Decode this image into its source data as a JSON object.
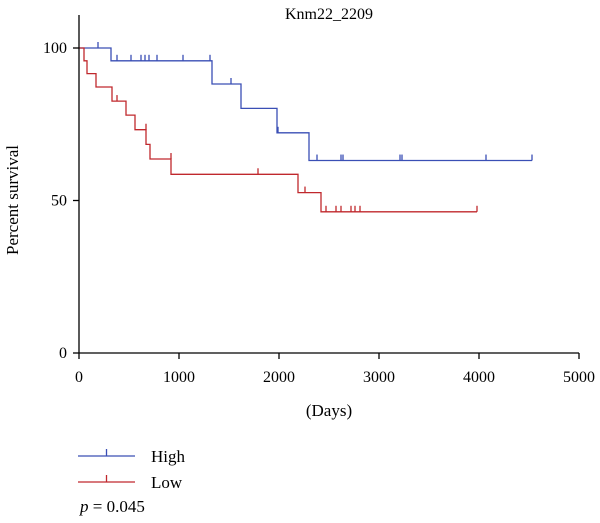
{
  "chart_data": {
    "type": "line",
    "subtype": "kaplan-meier",
    "title": "Knm22_2209",
    "xlabel": "(Days)",
    "ylabel": "Percent survival",
    "xlim": [
      0,
      5000
    ],
    "ylim": [
      0,
      100
    ],
    "xticks": [
      "0",
      "1000",
      "2000",
      "3000",
      "4000",
      "5000"
    ],
    "yticks": [
      "0",
      "50",
      "100"
    ],
    "grid": false,
    "legend_position": "bottom-left",
    "annotation": {
      "prefix": "p",
      "text": " = 0.045"
    },
    "series": [
      {
        "name": "High",
        "color": "#3a4fb5",
        "steps": [
          [
            0,
            100
          ],
          [
            320,
            100
          ],
          [
            320,
            95.8
          ],
          [
            1330,
            95.8
          ],
          [
            1330,
            88.2
          ],
          [
            1620,
            88.2
          ],
          [
            1620,
            80.2
          ],
          [
            1980,
            80.2
          ],
          [
            1980,
            72.2
          ],
          [
            2300,
            72.2
          ],
          [
            2300,
            63.1
          ],
          [
            4530,
            63.1
          ]
        ],
        "censored": [
          [
            190,
            100
          ],
          [
            380,
            95.8
          ],
          [
            520,
            95.8
          ],
          [
            620,
            95.8
          ],
          [
            660,
            95.8
          ],
          [
            700,
            95.8
          ],
          [
            780,
            95.8
          ],
          [
            1040,
            95.8
          ],
          [
            1310,
            95.8
          ],
          [
            1520,
            88.2
          ],
          [
            1990,
            72.2
          ],
          [
            2380,
            63.1
          ],
          [
            2620,
            63.1
          ],
          [
            2640,
            63.1
          ],
          [
            3210,
            63.1
          ],
          [
            3230,
            63.1
          ],
          [
            4070,
            63.1
          ],
          [
            4530,
            63.1
          ]
        ]
      },
      {
        "name": "Low",
        "color": "#c0282d",
        "steps": [
          [
            0,
            100
          ],
          [
            50,
            100
          ],
          [
            50,
            95.8
          ],
          [
            80,
            95.8
          ],
          [
            80,
            91.6
          ],
          [
            170,
            91.6
          ],
          [
            170,
            87.2
          ],
          [
            330,
            87.2
          ],
          [
            330,
            82.6
          ],
          [
            470,
            82.6
          ],
          [
            470,
            78
          ],
          [
            560,
            78
          ],
          [
            560,
            73.2
          ],
          [
            670,
            73.2
          ],
          [
            670,
            68.4
          ],
          [
            710,
            68.4
          ],
          [
            710,
            63.6
          ],
          [
            920,
            63.6
          ],
          [
            920,
            58.6
          ],
          [
            2190,
            58.6
          ],
          [
            2190,
            52.6
          ],
          [
            2420,
            52.6
          ],
          [
            2420,
            46.3
          ],
          [
            3980,
            46.3
          ]
        ],
        "censored": [
          [
            380,
            82.6
          ],
          [
            670,
            73.2
          ],
          [
            920,
            63.6
          ],
          [
            1790,
            58.6
          ],
          [
            2260,
            52.6
          ],
          [
            2470,
            46.3
          ],
          [
            2570,
            46.3
          ],
          [
            2620,
            46.3
          ],
          [
            2720,
            46.3
          ],
          [
            2760,
            46.3
          ],
          [
            2810,
            46.3
          ],
          [
            3980,
            46.3
          ]
        ]
      }
    ]
  }
}
